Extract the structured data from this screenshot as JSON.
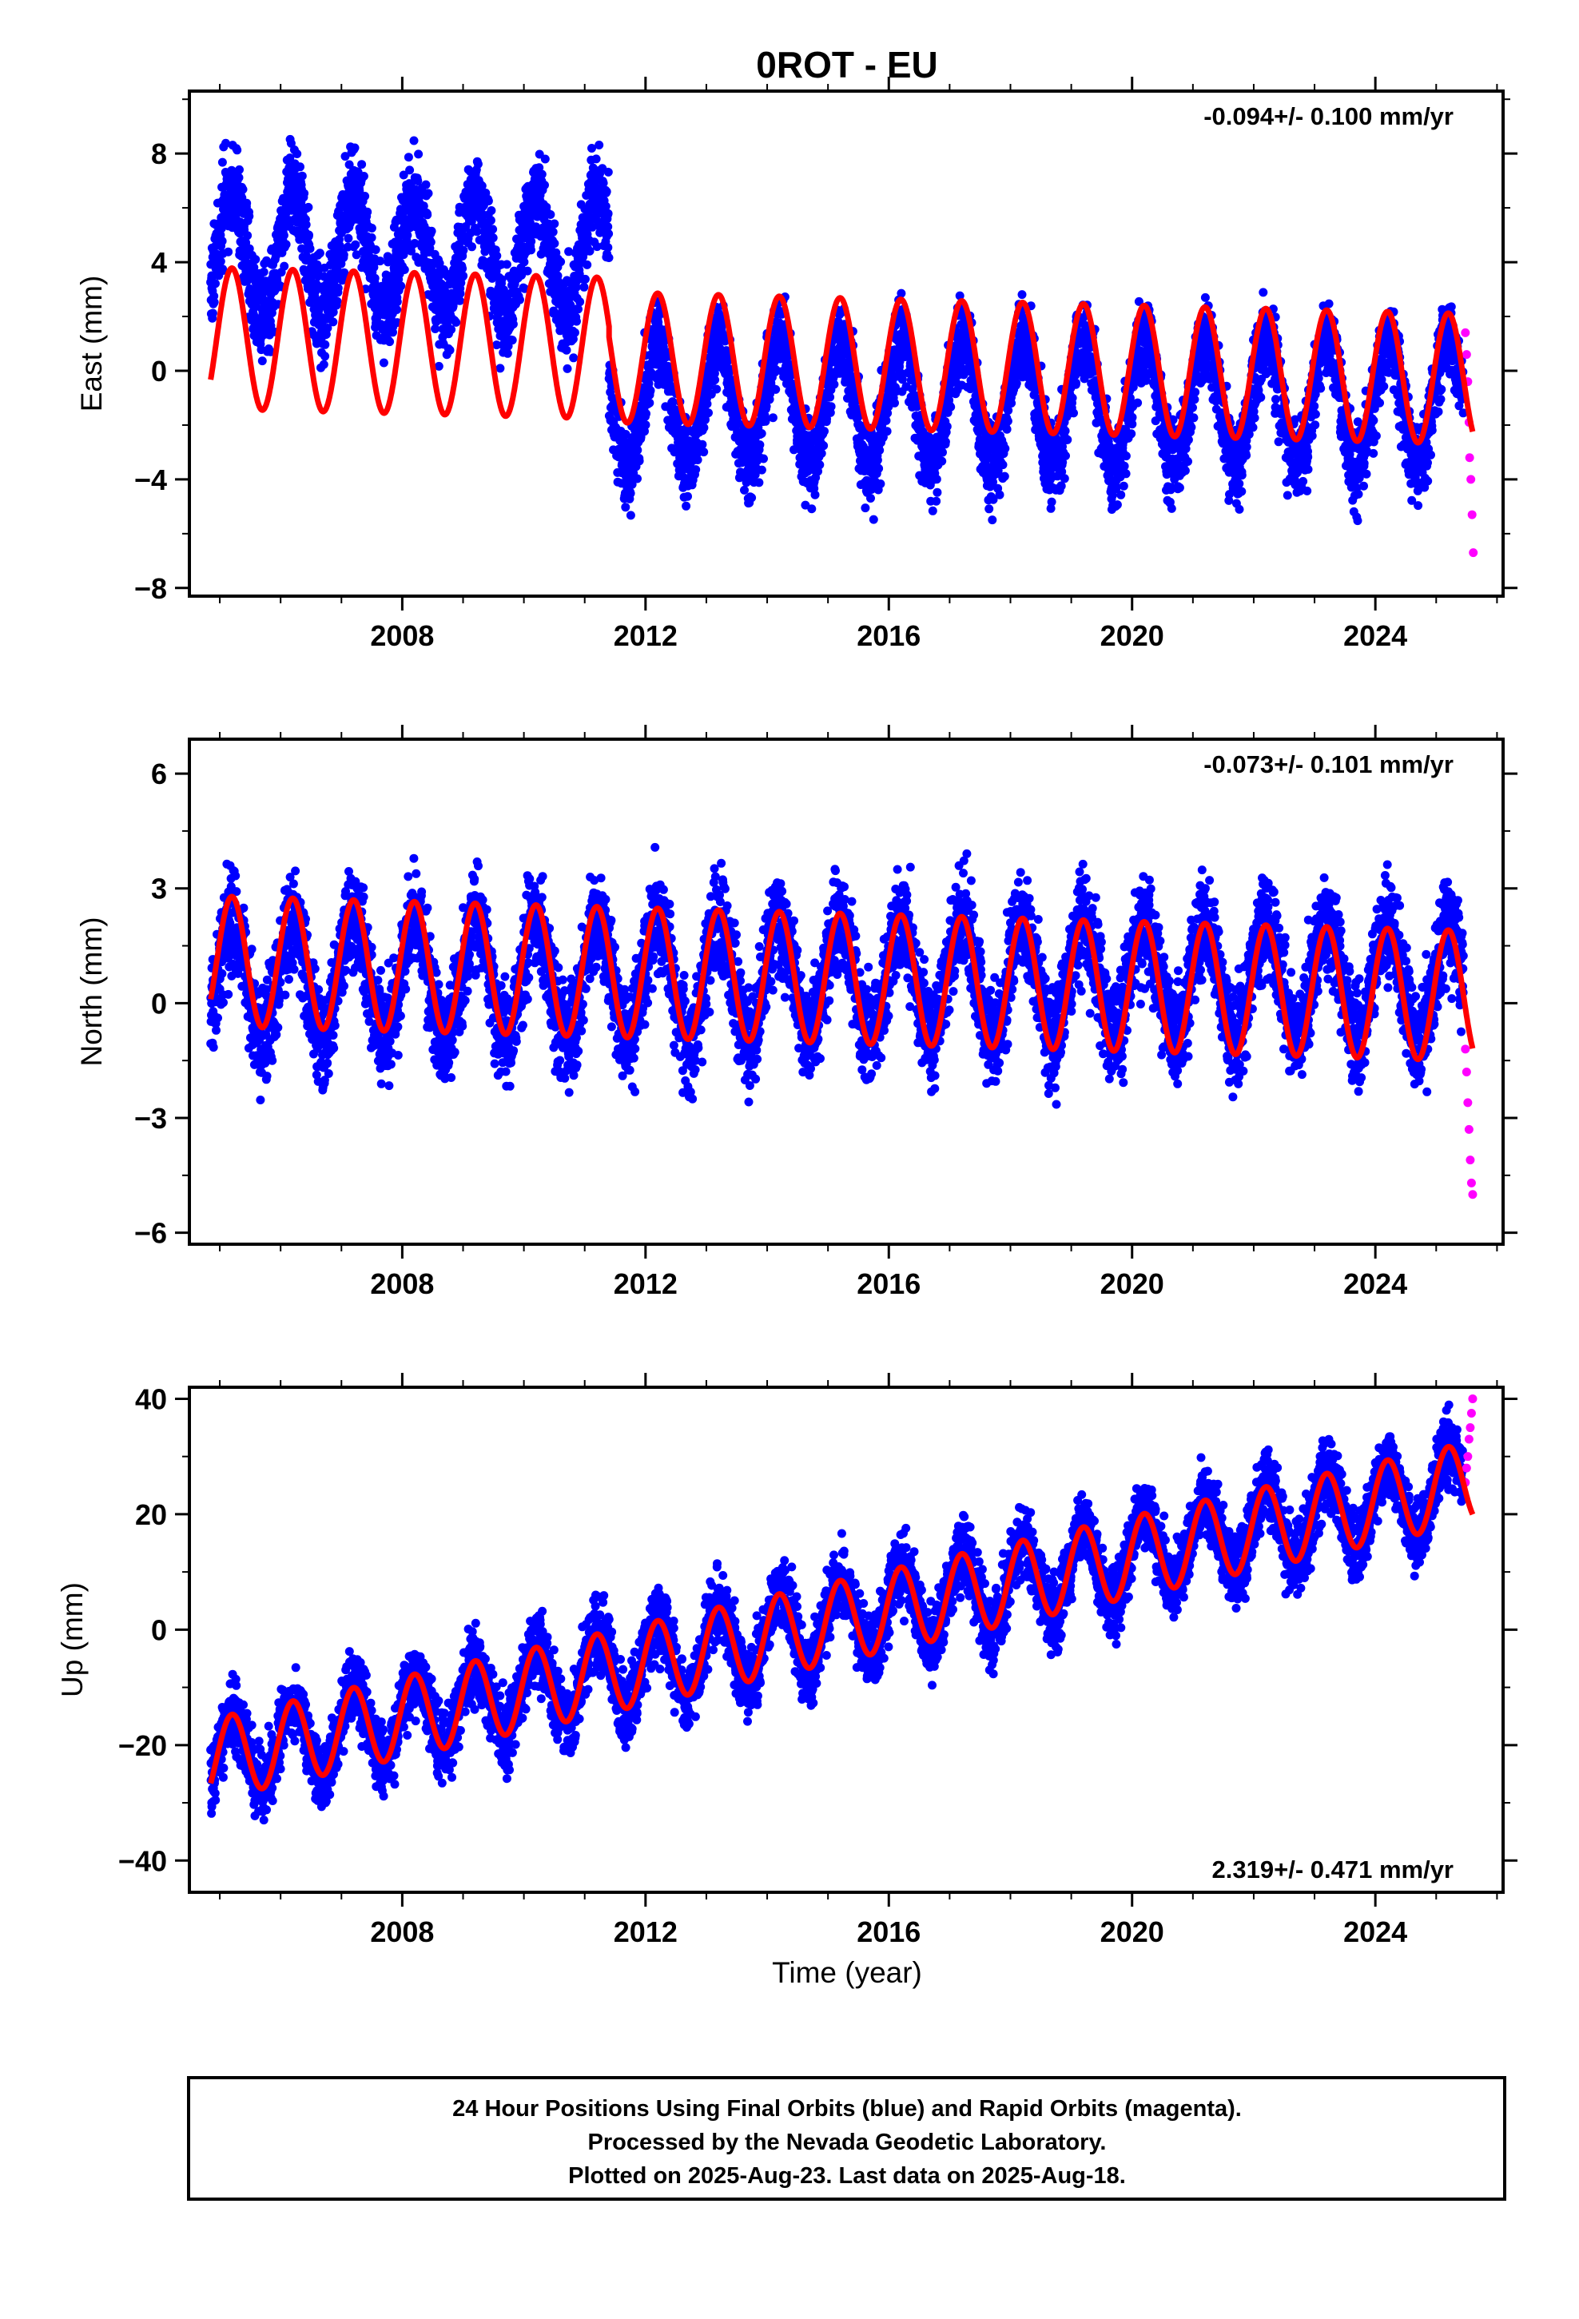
{
  "title": "0ROT - EU",
  "xlabel": "Time (year)",
  "footer": {
    "lines": [
      "24 Hour Positions Using Final Orbits (blue) and Rapid Orbits (magenta).",
      "Processed by the Nevada Geodetic Laboratory.",
      "Plotted on 2025-Aug-23. Last data on 2025-Aug-18."
    ]
  },
  "chart_data": [
    {
      "type": "scatter",
      "component": "east",
      "ylabel": "East (mm)",
      "xlim": [
        2004.5,
        2026.1
      ],
      "ylim": [
        -8.3,
        10.3
      ],
      "xticks": [
        2008,
        2012,
        2016,
        2020,
        2024
      ],
      "yticks": [
        -8,
        -4,
        0,
        4,
        8
      ],
      "rate_label": "-0.094+/- 0.100 mm/yr",
      "rate_position": "top-right",
      "model": {
        "rate_mm_per_yr": -0.094,
        "offset_epoch": 2011.4,
        "segments": [
          {
            "from": 2004.85,
            "to": 2011.4,
            "mean": 1.2,
            "amplitude": 2.6
          },
          {
            "from": 2011.4,
            "to": 2025.6,
            "mean": 0.5,
            "amplitude": 2.4
          }
        ]
      },
      "series": [
        {
          "name": "Final Orbits (blue)",
          "color": "#0000ff",
          "segments": [
            {
              "from": 2004.85,
              "to": 2011.4,
              "mean": 4.3,
              "amplitude": 2.2,
              "scatter": 1.6
            },
            {
              "from": 2011.4,
              "to": 2025.45,
              "mean": -1.2,
              "amplitude": 2.3,
              "scatter": 1.4
            }
          ]
        },
        {
          "name": "Rapid Orbits (magenta)",
          "color": "#ff00ff",
          "values": [
            [
              2025.48,
              1.4
            ],
            [
              2025.5,
              0.6
            ],
            [
              2025.52,
              -0.4
            ],
            [
              2025.54,
              -1.9
            ],
            [
              2025.55,
              -3.2
            ],
            [
              2025.57,
              -4.0
            ],
            [
              2025.59,
              -5.3
            ],
            [
              2025.61,
              -6.7
            ]
          ]
        }
      ]
    },
    {
      "type": "scatter",
      "component": "north",
      "ylabel": "North (mm)",
      "xlim": [
        2004.5,
        2026.1
      ],
      "ylim": [
        -6.3,
        6.9
      ],
      "xticks": [
        2008,
        2012,
        2016,
        2020,
        2024
      ],
      "yticks": [
        -6,
        -3,
        0,
        3,
        6
      ],
      "rate_label": "-0.073+/- 0.101 mm/yr",
      "rate_position": "top-right",
      "model": {
        "rate_mm_per_yr": -0.073,
        "segments": [
          {
            "from": 2004.85,
            "to": 2025.6,
            "mean": 1.1,
            "amplitude": 1.7
          }
        ]
      },
      "series": [
        {
          "name": "Final Orbits (blue)",
          "color": "#0000ff",
          "segments": [
            {
              "from": 2004.85,
              "to": 2025.45,
              "mean": 0.6,
              "amplitude": 1.5,
              "scatter": 1.2
            }
          ]
        },
        {
          "name": "Rapid Orbits (magenta)",
          "color": "#ff00ff",
          "values": [
            [
              2025.48,
              -1.2
            ],
            [
              2025.5,
              -1.8
            ],
            [
              2025.52,
              -2.6
            ],
            [
              2025.54,
              -3.3
            ],
            [
              2025.56,
              -4.1
            ],
            [
              2025.58,
              -4.7
            ],
            [
              2025.6,
              -5.0
            ]
          ]
        }
      ]
    },
    {
      "type": "scatter",
      "component": "up",
      "ylabel": "Up (mm)",
      "xlim": [
        2004.5,
        2026.1
      ],
      "ylim": [
        -45.5,
        42
      ],
      "xticks": [
        2008,
        2012,
        2016,
        2020,
        2024
      ],
      "yticks": [
        -40,
        -20,
        0,
        20,
        40
      ],
      "rate_label": "2.319+/- 0.471 mm/yr",
      "rate_position": "bottom-right",
      "model": {
        "rate_mm_per_yr": 2.319,
        "segments": [
          {
            "from": 2004.85,
            "to": 2025.6,
            "mean": -22.5,
            "amplitude": 7.0
          }
        ]
      },
      "series": [
        {
          "name": "Final Orbits (blue)",
          "color": "#0000ff",
          "segments": [
            {
              "from": 2004.85,
              "to": 2025.45,
              "mean": -22.5,
              "amplitude": 7.0,
              "scatter": 5.5
            }
          ]
        },
        {
          "name": "Rapid Orbits (magenta)",
          "color": "#ff00ff",
          "values": [
            [
              2025.48,
              25.5
            ],
            [
              2025.5,
              28
            ],
            [
              2025.52,
              30
            ],
            [
              2025.54,
              33
            ],
            [
              2025.56,
              35
            ],
            [
              2025.58,
              37.5
            ],
            [
              2025.6,
              40
            ]
          ]
        }
      ]
    }
  ]
}
